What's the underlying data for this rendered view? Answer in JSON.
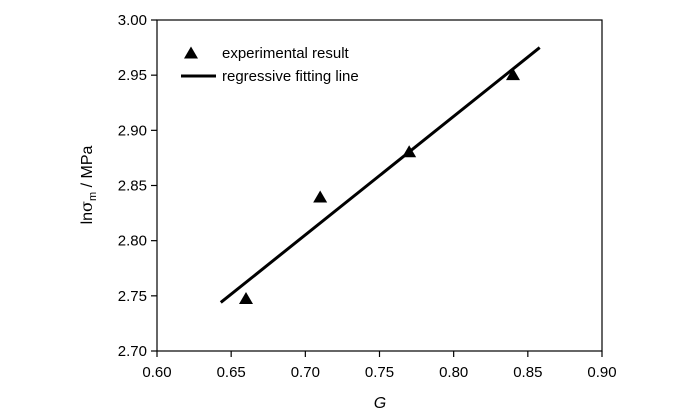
{
  "chart_data": {
    "type": "scatter",
    "xlabel": "G",
    "ylabel": {
      "prefix": "ln",
      "symbol": "σ",
      "subscript": "m",
      "suffix": " / MPa"
    },
    "xlim": [
      0.6,
      0.9
    ],
    "ylim": [
      2.7,
      3.0
    ],
    "x_ticks": [
      "0.60",
      "0.65",
      "0.70",
      "0.75",
      "0.80",
      "0.85",
      "0.90"
    ],
    "y_ticks": [
      "2.70",
      "2.75",
      "2.80",
      "2.85",
      "2.90",
      "2.95",
      "3.00"
    ],
    "grid": false,
    "legend_position": "top-left",
    "series": [
      {
        "name": "experimental result",
        "kind": "scatter",
        "marker": "triangle",
        "points": [
          {
            "x": 0.66,
            "y": 2.748
          },
          {
            "x": 0.71,
            "y": 2.84
          },
          {
            "x": 0.77,
            "y": 2.881
          },
          {
            "x": 0.84,
            "y": 2.951
          }
        ]
      },
      {
        "name": "regressive fitting line",
        "kind": "line",
        "points": [
          {
            "x": 0.643,
            "y": 2.744
          },
          {
            "x": 0.858,
            "y": 2.975
          }
        ]
      }
    ],
    "colors": {
      "axis": "#000000",
      "marks": "#000000"
    }
  }
}
